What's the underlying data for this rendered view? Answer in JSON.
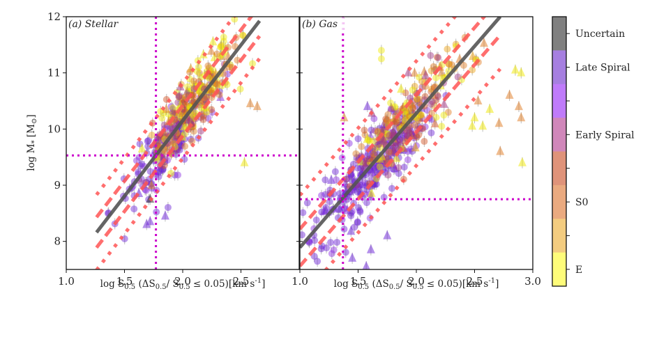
{
  "chart_data": [
    {
      "type": "scatter",
      "panel_label": "(a) Stellar",
      "xlabel": "log S_0.5 (ΔS_0.5/ S_0.5 ≤ 0.05)[km s^-1]",
      "ylabel": "log M_* [M_⊙]",
      "xlim": [
        1.0,
        3.0
      ],
      "ylim": [
        7.5,
        12.0
      ],
      "xticks": [
        "1.0",
        "1.5",
        "2.0",
        "2.5"
      ],
      "yticks": [
        "8",
        "9",
        "10",
        "11",
        "12"
      ],
      "cut_lines": {
        "vertical_x": 1.77,
        "horizontal_y": 9.53,
        "color": "#cc00cc"
      },
      "fit": {
        "slope": 2.69,
        "intercept": 4.77,
        "x_range": [
          1.26,
          2.66
        ],
        "inner_offset": 0.27,
        "outer_offset": 0.67,
        "fit_color": "#555555",
        "band_color": "#ff5555"
      },
      "cloud": {
        "x_center": 2.0,
        "x_spread": 0.22,
        "y_scatter": 0.3,
        "n": 420
      },
      "outliers": [
        {
          "x": 2.53,
          "y": 9.4,
          "cls": "E",
          "marker": "triangle"
        },
        {
          "x": 2.58,
          "y": 10.45,
          "cls": "S0",
          "marker": "triangle"
        },
        {
          "x": 2.64,
          "y": 10.4,
          "cls": "S0",
          "marker": "triangle"
        },
        {
          "x": 1.72,
          "y": 8.35,
          "cls": "Late Spiral",
          "marker": "triangle"
        },
        {
          "x": 1.69,
          "y": 8.3,
          "cls": "Late Spiral",
          "marker": "triangle"
        },
        {
          "x": 1.85,
          "y": 8.45,
          "cls": "Late Spiral",
          "marker": "triangle"
        },
        {
          "x": 1.72,
          "y": 8.75,
          "cls": "Uncertain",
          "marker": "triangle"
        },
        {
          "x": 1.98,
          "y": 10.75,
          "cls": "Early Spiral",
          "marker": "triangle"
        },
        {
          "x": 2.26,
          "y": 11.55,
          "cls": "E",
          "marker": "triangle"
        }
      ]
    },
    {
      "type": "scatter",
      "panel_label": "(b) Gas",
      "xlabel": "log S_0.5 (ΔS_0.5/ S_0.5 ≤ 0.05)[km s^-1]",
      "ylabel": "",
      "xlim": [
        1.0,
        3.0
      ],
      "ylim": [
        7.5,
        12.0
      ],
      "xticks": [
        "1.0",
        "1.5",
        "2.0",
        "2.5",
        "3.0"
      ],
      "yticks": [],
      "cut_lines": {
        "vertical_x": 1.37,
        "horizontal_y": 8.75,
        "color": "#cc00cc"
      },
      "fit": {
        "slope": 2.39,
        "intercept": 5.5,
        "x_range": [
          1.0,
          2.72
        ],
        "inner_offset": 0.33,
        "outer_offset": 0.93,
        "fit_color": "#555555",
        "band_color": "#ff5555"
      },
      "cloud": {
        "x_center": 1.75,
        "x_spread": 0.28,
        "y_scatter": 0.35,
        "n": 520
      },
      "outliers": [
        {
          "x": 2.72,
          "y": 9.6,
          "cls": "S0",
          "marker": "triangle"
        },
        {
          "x": 2.91,
          "y": 9.4,
          "cls": "E",
          "marker": "triangle"
        },
        {
          "x": 2.48,
          "y": 10.05,
          "cls": "E",
          "marker": "triangle"
        },
        {
          "x": 1.75,
          "y": 8.1,
          "cls": "Late Spiral",
          "marker": "triangle"
        },
        {
          "x": 1.61,
          "y": 7.85,
          "cls": "Late Spiral",
          "marker": "triangle"
        },
        {
          "x": 1.45,
          "y": 7.7,
          "cls": "Late Spiral",
          "marker": "triangle"
        },
        {
          "x": 1.57,
          "y": 7.55,
          "cls": "Late Spiral",
          "marker": "triangle"
        },
        {
          "x": 1.38,
          "y": 10.2,
          "cls": "S0",
          "marker": "triangle"
        },
        {
          "x": 1.58,
          "y": 10.4,
          "cls": "Late Spiral",
          "marker": "triangle"
        },
        {
          "x": 1.93,
          "y": 11.0,
          "cls": "Early Spiral",
          "marker": "triangle"
        },
        {
          "x": 2.08,
          "y": 10.95,
          "cls": "Early Spiral",
          "marker": "triangle"
        },
        {
          "x": 2.85,
          "y": 11.05,
          "cls": "E",
          "marker": "triangle"
        },
        {
          "x": 2.9,
          "y": 11.0,
          "cls": "E",
          "marker": "triangle"
        },
        {
          "x": 2.8,
          "y": 10.6,
          "cls": "S0",
          "marker": "triangle"
        },
        {
          "x": 2.88,
          "y": 10.4,
          "cls": "S0",
          "marker": "triangle"
        },
        {
          "x": 2.71,
          "y": 10.1,
          "cls": "S0",
          "marker": "triangle"
        },
        {
          "x": 2.57,
          "y": 10.05,
          "cls": "E",
          "marker": "triangle"
        },
        {
          "x": 2.63,
          "y": 10.35,
          "cls": "E",
          "marker": "triangle"
        },
        {
          "x": 2.5,
          "y": 10.2,
          "cls": "E",
          "marker": "triangle"
        },
        {
          "x": 2.9,
          "y": 10.2,
          "cls": "S0",
          "marker": "triangle"
        },
        {
          "x": 2.53,
          "y": 10.5,
          "cls": "S0",
          "marker": "triangle"
        },
        {
          "x": 1.7,
          "y": 11.4,
          "cls": "E",
          "marker": "circle"
        },
        {
          "x": 1.7,
          "y": 11.25,
          "cls": "E",
          "marker": "circle"
        }
      ]
    }
  ],
  "colorbar": {
    "classes": [
      {
        "label": "Uncertain",
        "color": "#808080",
        "marker_color": "#222222"
      },
      {
        "label": "Late Spiral",
        "color": "#a67fe0",
        "marker_color": "#6a1fd8"
      },
      {
        "label": "",
        "color": "#bf7bfa",
        "marker_color": "#8a2be2"
      },
      {
        "label": "Early Spiral",
        "color": "#d087ba",
        "marker_color": "#a03080"
      },
      {
        "label": "",
        "color": "#df937a",
        "marker_color": "#d05020"
      },
      {
        "label": "S0",
        "color": "#eaaa80",
        "marker_color": "#e07a20"
      },
      {
        "label": "",
        "color": "#f3cc80",
        "marker_color": "#eaa010"
      },
      {
        "label": "E",
        "color": "#fefc7a",
        "marker_color": "#f0e800"
      }
    ]
  }
}
